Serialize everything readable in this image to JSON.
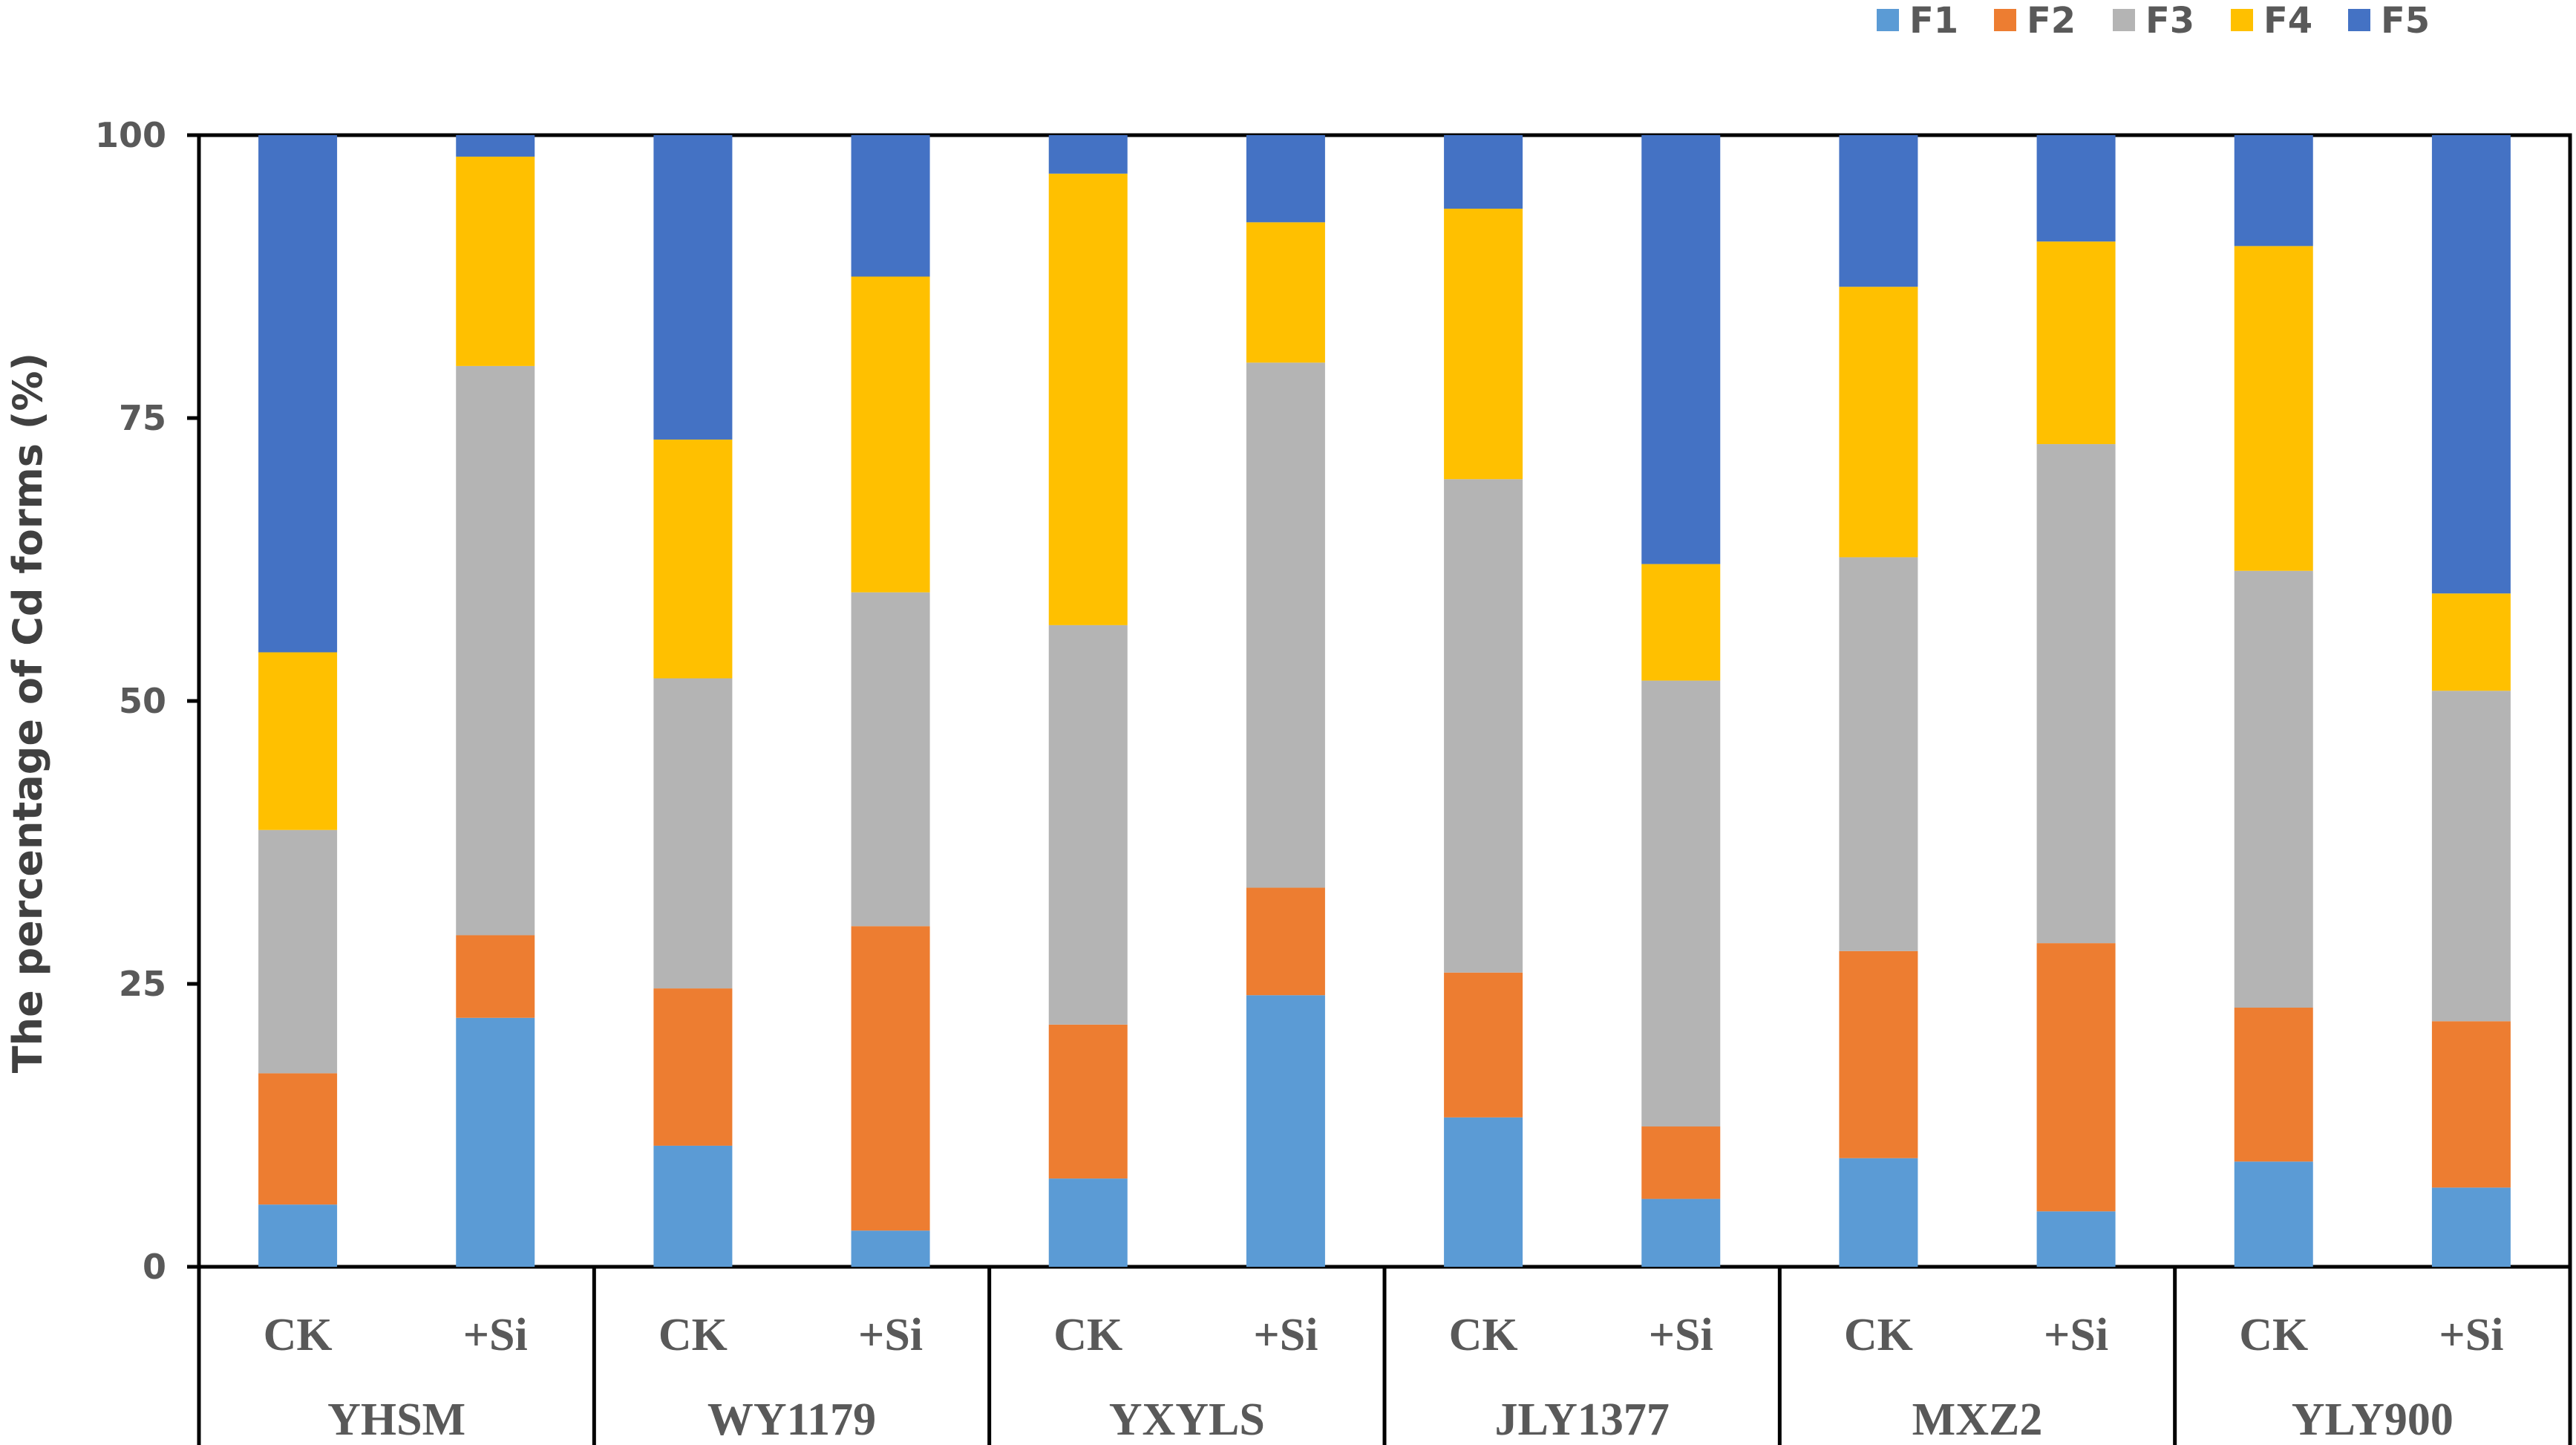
{
  "chart_data": {
    "type": "bar",
    "stacked": true,
    "title": "",
    "ylabel": "The percentage of  Cd forms (%)",
    "xlabel": "",
    "ylim": [
      0,
      100
    ],
    "yticks": [
      0,
      25,
      50,
      75,
      100
    ],
    "ytick_labels": [
      "0",
      "25",
      "50",
      "75",
      "100"
    ],
    "legend_position": "top-right",
    "groups": [
      "YHSM",
      "WY1179",
      "YXYLS",
      "JLY1377",
      "MXZ2",
      "YLY900"
    ],
    "categories": [
      "CK",
      "+Si",
      "CK",
      "+Si",
      "CK",
      "+Si",
      "CK",
      "+Si",
      "CK",
      "+Si",
      "CK",
      "+Si"
    ],
    "series": [
      {
        "name": "F1",
        "color": "#5B9BD5",
        "values": [
          5.5,
          22.0,
          10.7,
          3.2,
          7.8,
          24.0,
          13.2,
          6.0,
          9.6,
          4.9,
          9.3,
          7.0
        ]
      },
      {
        "name": "F2",
        "color": "#ED7D31",
        "values": [
          11.6,
          7.3,
          13.9,
          26.9,
          13.6,
          9.5,
          12.8,
          6.4,
          18.3,
          23.7,
          13.6,
          14.7
        ]
      },
      {
        "name": "F3",
        "color": "#B4B4B4",
        "values": [
          21.5,
          50.3,
          27.4,
          29.5,
          35.3,
          46.4,
          43.6,
          39.4,
          34.8,
          44.1,
          38.6,
          29.2
        ]
      },
      {
        "name": "F4",
        "color": "#FFC000",
        "values": [
          15.7,
          18.5,
          21.1,
          27.9,
          39.9,
          12.4,
          23.9,
          10.3,
          23.9,
          17.9,
          28.7,
          8.6
        ]
      },
      {
        "name": "F5",
        "color": "#4472C4",
        "values": [
          45.7,
          1.9,
          26.9,
          12.5,
          3.4,
          7.7,
          6.5,
          37.9,
          13.4,
          9.4,
          9.8,
          40.5
        ]
      }
    ]
  }
}
